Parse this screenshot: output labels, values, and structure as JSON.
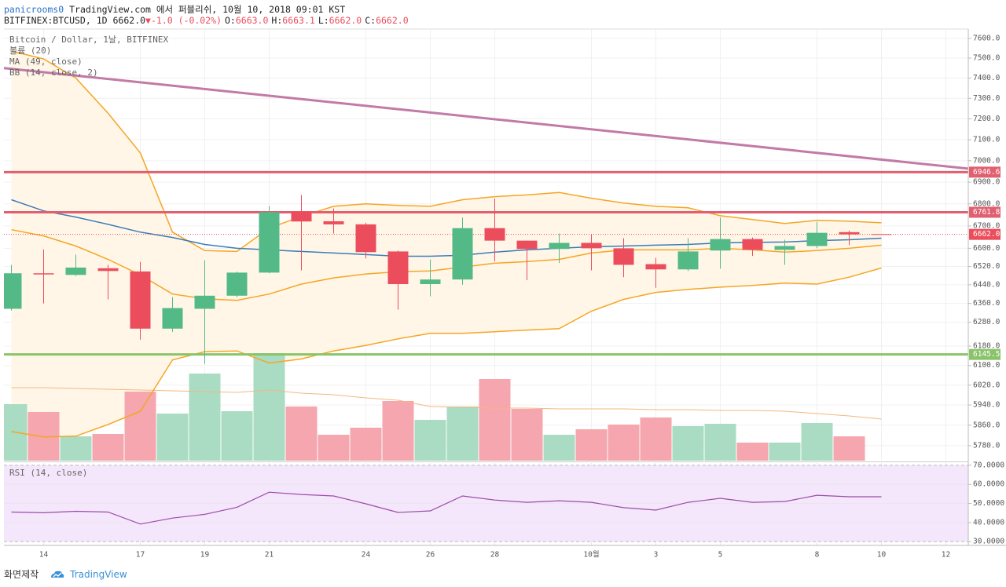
{
  "header": {
    "user": "panicrooms0",
    "published": "TradingView.com 에서 퍼블리쉬, 10월 10, 2018 09:01 KST",
    "symbol": "BITFINEX:BTCUSD, 1D",
    "last": "6662.0",
    "arrow": "▼",
    "change": "-1.0 (-0.02%)",
    "ohlc": [
      {
        "key": "O:",
        "value": "6663.0"
      },
      {
        "key": "H:",
        "value": "6663.1"
      },
      {
        "key": "L:",
        "value": "6662.0"
      },
      {
        "key": "C:",
        "value": "6662.0"
      }
    ]
  },
  "chart_data": [
    {
      "type": "candlestick",
      "title": "Bitcoin / Dollar, 1날, BITFINEX",
      "categories": [
        null,
        "14",
        null,
        null,
        "17",
        null,
        "19",
        null,
        "21",
        null,
        null,
        "24",
        null,
        "26",
        null,
        "28",
        null,
        null,
        "10월",
        null,
        "3",
        null,
        "5",
        null,
        null,
        "8",
        null,
        "10",
        null,
        "12"
      ],
      "open": [
        6337,
        6490,
        6483,
        6512,
        6498,
        6253,
        6337,
        6393,
        6493,
        6765,
        6721,
        6707,
        6586,
        6443,
        6463,
        6690,
        6634,
        6597,
        6624,
        6600,
        6530,
        6507,
        6590,
        6641,
        6593,
        6610,
        6672,
        6663.0,
        null,
        null
      ],
      "high": [
        6527,
        6595,
        6572,
        6527,
        6540,
        6387,
        6547,
        6497,
        6790,
        6841,
        6779,
        6714,
        6590,
        6550,
        6738,
        6825,
        6634,
        6666,
        6662,
        6645,
        6558,
        6645,
        6738,
        6648,
        6638,
        6718,
        6679,
        6663.1,
        null,
        null
      ],
      "low": [
        6330,
        6360,
        6478,
        6377,
        6207,
        6240,
        6107,
        6387,
        6490,
        6503,
        6666,
        6555,
        6333,
        6390,
        6440,
        6542,
        6460,
        6535,
        6503,
        6473,
        6427,
        6500,
        6510,
        6566,
        6527,
        6600,
        6614,
        6662.0,
        null,
        null
      ],
      "close": [
        6490,
        6485,
        6515,
        6500,
        6253,
        6340,
        6393,
        6493,
        6762,
        6720,
        6707,
        6583,
        6443,
        6463,
        6690,
        6634,
        6597,
        6624,
        6600,
        6527,
        6507,
        6586,
        6641,
        6593,
        6610,
        6669,
        6662,
        6662.0,
        null,
        null
      ],
      "colors": {
        "up": "#53b987",
        "down": "#eb4d5c",
        "volume_up": "#a9dcc3",
        "volume_down": "#f5a6ae"
      },
      "volume": {
        "name": "볼륨 (20)",
        "ma_color": "#f2b880",
        "values": [
          72,
          62,
          31,
          34,
          88,
          60,
          111,
          63,
          137,
          69,
          33,
          42,
          76,
          52,
          69,
          104,
          66,
          33,
          40,
          46,
          55,
          44,
          47,
          23,
          23,
          48,
          31,
          null,
          null,
          null
        ],
        "ma": [
          93,
          93,
          92,
          91,
          90,
          89,
          88,
          87,
          90,
          86,
          84,
          80,
          77,
          69,
          68,
          67,
          67,
          66,
          66,
          66,
          65,
          65,
          64,
          64,
          63,
          60,
          57,
          53,
          null,
          null
        ]
      },
      "ma": {
        "name": "MA (49, close)",
        "color": "#3b7db5",
        "values": [
          6819,
          6768,
          6740,
          6707,
          6672,
          6648,
          6617,
          6600,
          6593,
          6586,
          6579,
          6572,
          6565,
          6565,
          6569,
          6583,
          6593,
          6600,
          6607,
          6610,
          6614,
          6617,
          6624,
          6626,
          6628,
          6634,
          6638,
          6645,
          null,
          null
        ]
      },
      "bb": {
        "name": "BB (14, close, 2)",
        "color": "#f5a623",
        "fill": "#fff6e8",
        "upper": [
          7536,
          7496,
          7400,
          7227,
          7037,
          6672,
          6590,
          6586,
          6690,
          6743,
          6789,
          6800,
          6793,
          6789,
          6819,
          6833,
          6841,
          6852,
          6826,
          6804,
          6789,
          6782,
          6746,
          6729,
          6711,
          6725,
          6721,
          6714,
          null,
          null
        ],
        "basis": [
          6683,
          6655,
          6610,
          6551,
          6483,
          6400,
          6380,
          6373,
          6400,
          6443,
          6470,
          6487,
          6497,
          6500,
          6517,
          6534,
          6541,
          6551,
          6579,
          6593,
          6593,
          6593,
          6600,
          6593,
          6583,
          6590,
          6600,
          6614,
          null,
          null
        ],
        "lower": [
          5835,
          5814,
          5817,
          5863,
          5915,
          6123,
          6157,
          6160,
          6110,
          6127,
          6160,
          6183,
          6210,
          6233,
          6233,
          6240,
          6247,
          6253,
          6327,
          6377,
          6407,
          6420,
          6430,
          6437,
          6447,
          6443,
          6473,
          6513,
          null,
          null
        ]
      },
      "ylim": [
        5722,
        7648
      ],
      "log": true,
      "grid": true,
      "yticks": [
        {
          "value": 7600,
          "label": "7600.0"
        },
        {
          "value": 7500,
          "label": "7500.0"
        },
        {
          "value": 7400,
          "label": "7400.0"
        },
        {
          "value": 7300,
          "label": "7300.0"
        },
        {
          "value": 7200,
          "label": "7200.0"
        },
        {
          "value": 7100,
          "label": "7100.0"
        },
        {
          "value": 7000,
          "label": "7000.0"
        },
        {
          "value": 6900,
          "label": "6900.0"
        },
        {
          "value": 6800,
          "label": "6800.0"
        },
        {
          "value": 6700,
          "label": "6700.0"
        },
        {
          "value": 6600,
          "label": "6600.0"
        },
        {
          "value": 6520,
          "label": "6520.0"
        },
        {
          "value": 6440,
          "label": "6440.0"
        },
        {
          "value": 6360,
          "label": "6360.0"
        },
        {
          "value": 6280,
          "label": "6280.0"
        },
        {
          "value": 6180,
          "label": "6180.0"
        },
        {
          "value": 6100,
          "label": "6100.0"
        },
        {
          "value": 6020,
          "label": "6020.0"
        },
        {
          "value": 5940,
          "label": "5940.0"
        },
        {
          "value": 5860,
          "label": "5860.0"
        },
        {
          "value": 5780,
          "label": "5780.0"
        }
      ],
      "levels": [
        {
          "value": 6946.6,
          "color": "#e06070"
        },
        {
          "value": 6761.8,
          "color": "#e06070"
        },
        {
          "value": 6145.5,
          "color": "#8bc36a"
        }
      ],
      "trend_line": {
        "color": "#c27aa6",
        "values": [
          7450,
          6963
        ]
      },
      "last_price": {
        "value": 6662,
        "label": "6662.0",
        "color": "#eb4d5c"
      }
    },
    {
      "type": "line",
      "title": "RSI (14, close)",
      "band_color": "#f4e6fb",
      "series": [
        {
          "color": "#9c4ca8",
          "values": [
            45.5,
            45.1,
            45.9,
            45.5,
            39.2,
            42.3,
            44.3,
            48.0,
            55.9,
            54.7,
            53.9,
            49.8,
            45.3,
            46.1,
            53.9,
            51.8,
            50.6,
            51.4,
            50.6,
            47.8,
            46.5,
            50.6,
            52.7,
            50.6,
            51.0,
            54.3,
            53.5,
            53.5,
            null,
            null
          ]
        }
      ],
      "ylim": [
        28,
        71.2
      ],
      "yticks": [
        {
          "value": 70,
          "label": "70.0000"
        },
        {
          "value": 60,
          "label": "60.0000"
        },
        {
          "value": 50,
          "label": "50.0000"
        },
        {
          "value": 40,
          "label": "40.0000"
        },
        {
          "value": 30,
          "label": "30.0000"
        }
      ]
    }
  ],
  "footer": {
    "caption": "화면제작",
    "brand": "TradingView"
  }
}
